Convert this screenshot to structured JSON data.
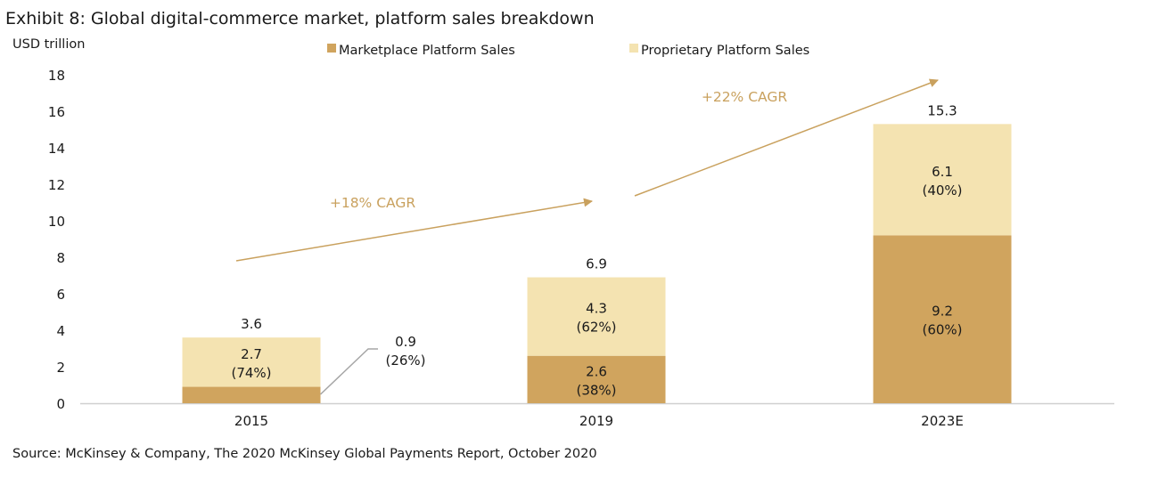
{
  "chart_data": {
    "type": "bar",
    "stacked": true,
    "title": "Exhibit 8: Global digital-commerce market, platform sales breakdown",
    "ylabel": "USD trillion",
    "xlabel": "",
    "ylim": [
      0,
      18
    ],
    "yticks": [
      0,
      2,
      4,
      6,
      8,
      10,
      12,
      14,
      16,
      18
    ],
    "grid": false,
    "legend_position": "top",
    "categories": [
      "2015",
      "2019",
      "2023E"
    ],
    "totals": [
      3.6,
      6.9,
      15.3
    ],
    "total_labels": [
      "3.6",
      "6.9",
      "15.3"
    ],
    "series": [
      {
        "name": "Marketplace Platform Sales",
        "color": "#D0A45E",
        "values": [
          0.9,
          2.6,
          9.2
        ],
        "labels": [
          "0.9",
          "2.6",
          "9.2"
        ],
        "shares": [
          "(26%)",
          "(38%)",
          "(60%)"
        ]
      },
      {
        "name": "Proprietary Platform Sales",
        "color": "#F4E3B1",
        "values": [
          2.7,
          4.3,
          6.1
        ],
        "labels": [
          "2.7",
          "4.3",
          "6.1"
        ],
        "shares": [
          "(74%)",
          "(62%)",
          "(40%)"
        ]
      }
    ],
    "annotations": [
      {
        "text": "+18% CAGR",
        "from": "2015",
        "to": "2019"
      },
      {
        "text": "+22% CAGR",
        "from": "2019",
        "to": "2023E"
      }
    ],
    "arrow_color": "#C9A15E",
    "source": "Source: McKinsey & Company, The 2020 McKinsey Global Payments Report, October 2020"
  }
}
